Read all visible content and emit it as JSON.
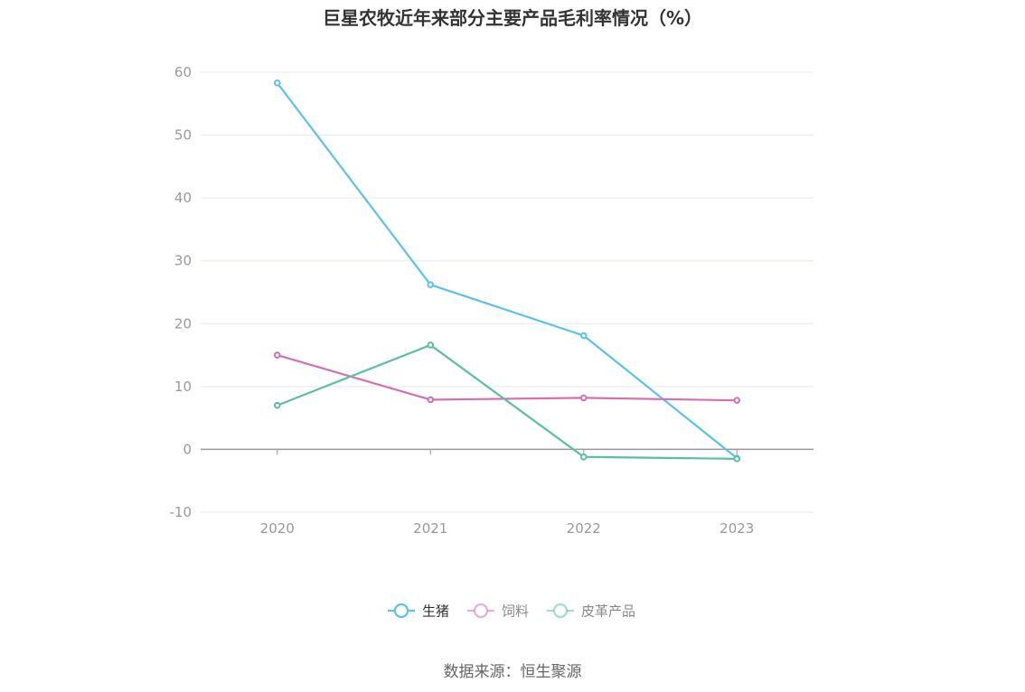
{
  "chart_data": {
    "type": "line",
    "title": "巨星农牧近年来部分主要产品毛利率情况（%）",
    "categories": [
      "2020",
      "2021",
      "2022",
      "2023"
    ],
    "ylim": [
      -10,
      60
    ],
    "yticks": [
      -10,
      0,
      10,
      20,
      30,
      40,
      50,
      60
    ],
    "grid": true,
    "legend_position": "bottom",
    "series": [
      {
        "name": "生猪",
        "values": [
          58.3,
          26.2,
          18.1,
          -1.4
        ],
        "color": "#5bc1f0"
      },
      {
        "name": "饲料",
        "values": [
          15.0,
          7.9,
          8.2,
          7.8
        ],
        "color": "#d46fb5"
      },
      {
        "name": "皮革产品",
        "values": [
          7.0,
          16.6,
          -1.2,
          -1.5
        ],
        "color": "#5abfa4"
      }
    ]
  },
  "source": "数据来源：恒生聚源"
}
